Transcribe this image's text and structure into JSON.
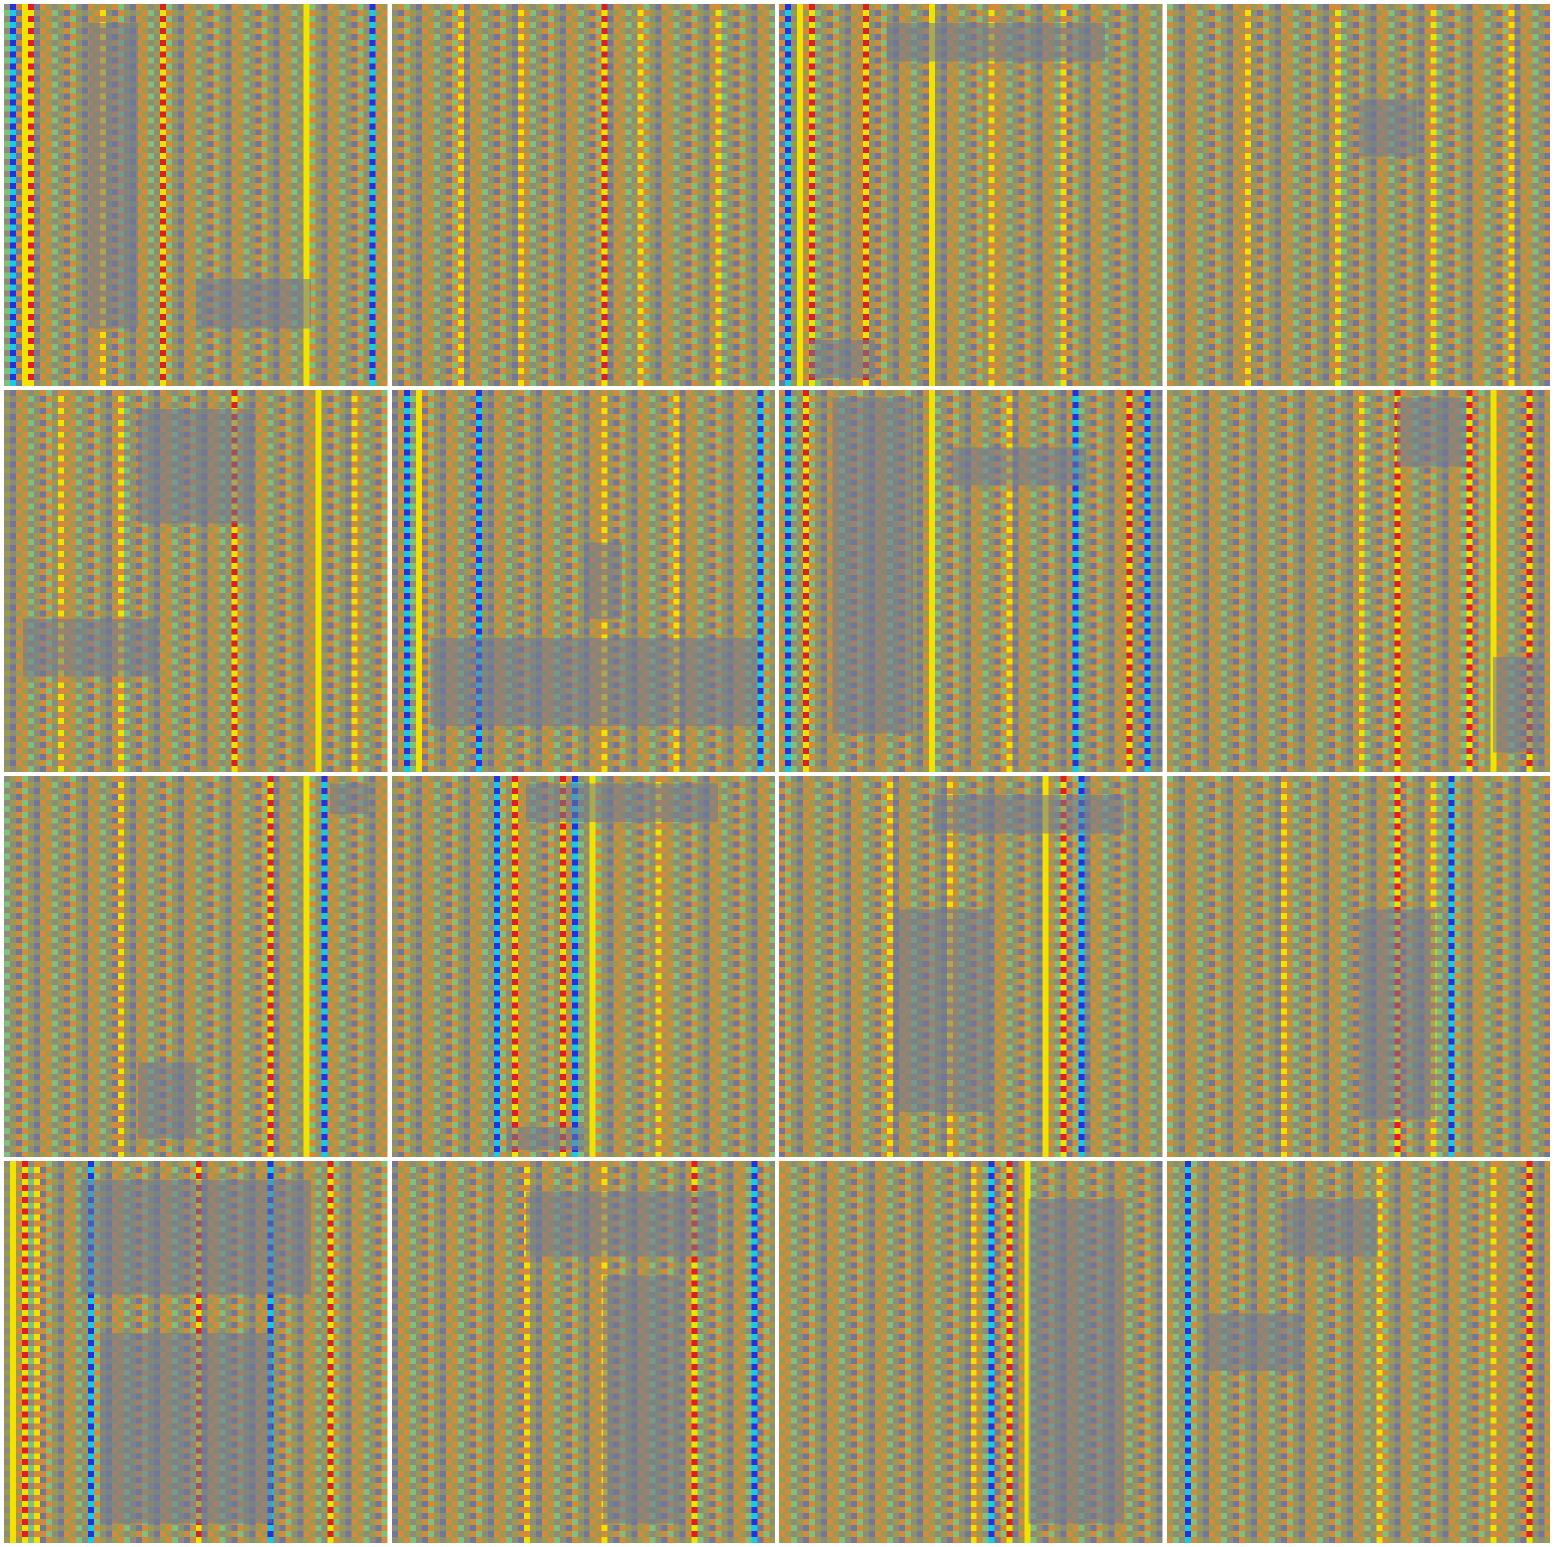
{
  "grid": {
    "rows": 4,
    "cols": 4,
    "separator_color": "#ffffff",
    "palette": {
      "gray": "#8c8c78",
      "olive": "#9a9a52",
      "orange": "#d48a3c",
      "yellow": "#f2e200",
      "red": "#e01e1e",
      "blue": "#1f33e0",
      "cyan": "#19c9e8",
      "green": "#7fc07a",
      "slate": "#707896"
    },
    "tiles": [
      {
        "name": "tile-r1-c1",
        "bands": [
          0.02,
          0.05,
          0.07,
          0.25,
          0.42,
          0.8,
          0.97
        ],
        "dark_regions": [
          [
            0.22,
            0.05,
            0.35,
            0.85
          ],
          [
            0.5,
            0.72,
            0.8,
            0.85
          ]
        ],
        "band_colors": [
          "blue",
          "yellow",
          "red",
          "orange",
          "red",
          "yellow",
          "blue"
        ]
      },
      {
        "name": "tile-r1-c2",
        "bands": [
          0.18,
          0.33,
          0.55,
          0.65,
          0.85
        ],
        "dark_regions": [],
        "band_colors": [
          "orange",
          "orange",
          "red",
          "orange",
          "orange"
        ]
      },
      {
        "name": "tile-r1-c3",
        "bands": [
          0.02,
          0.05,
          0.08,
          0.22,
          0.4,
          0.55,
          0.75
        ],
        "dark_regions": [
          [
            0.08,
            0.88,
            0.25,
            0.98
          ],
          [
            0.28,
            0.05,
            0.85,
            0.15
          ]
        ],
        "band_colors": [
          "blue",
          "yellow",
          "red",
          "red",
          "yellow",
          "orange",
          "orange"
        ]
      },
      {
        "name": "tile-r1-c4",
        "bands": [
          0.2,
          0.45,
          0.7,
          0.9
        ],
        "dark_regions": [
          [
            0.5,
            0.25,
            0.65,
            0.4
          ]
        ],
        "band_colors": [
          "orange",
          "orange",
          "orange",
          "orange"
        ]
      },
      {
        "name": "tile-r2-c1",
        "bands": [
          0.15,
          0.3,
          0.6,
          0.82,
          0.92
        ],
        "dark_regions": [
          [
            0.35,
            0.05,
            0.65,
            0.35
          ],
          [
            0.05,
            0.6,
            0.4,
            0.75
          ]
        ],
        "band_colors": [
          "orange",
          "orange",
          "red",
          "yellow",
          "orange"
        ]
      },
      {
        "name": "tile-r2-c2",
        "bands": [
          0.03,
          0.07,
          0.22,
          0.55,
          0.75,
          0.97
        ],
        "dark_regions": [
          [
            0.1,
            0.65,
            0.95,
            0.88
          ],
          [
            0.5,
            0.4,
            0.6,
            0.6
          ]
        ],
        "band_colors": [
          "blue",
          "yellow",
          "blue",
          "orange",
          "orange",
          "blue"
        ]
      },
      {
        "name": "tile-r2-c3",
        "bands": [
          0.02,
          0.06,
          0.4,
          0.6,
          0.78,
          0.92,
          0.97
        ],
        "dark_regions": [
          [
            0.14,
            0.02,
            0.35,
            0.9
          ],
          [
            0.45,
            0.15,
            0.8,
            0.25
          ]
        ],
        "band_colors": [
          "blue",
          "red",
          "yellow",
          "orange",
          "blue",
          "red",
          "blue"
        ]
      },
      {
        "name": "tile-r2-c4",
        "bands": [
          0.5,
          0.6,
          0.8,
          0.85,
          0.95
        ],
        "dark_regions": [
          [
            0.6,
            0.02,
            0.78,
            0.2
          ],
          [
            0.85,
            0.7,
            0.97,
            0.95
          ]
        ],
        "band_colors": [
          "orange",
          "red",
          "red",
          "yellow",
          "red"
        ]
      },
      {
        "name": "tile-r3-c1",
        "bands": [
          0.3,
          0.7,
          0.8,
          0.84
        ],
        "dark_regions": [
          [
            0.35,
            0.75,
            0.5,
            0.95
          ],
          [
            0.85,
            0.02,
            0.95,
            0.1
          ]
        ],
        "band_colors": [
          "orange",
          "red",
          "yellow",
          "blue"
        ]
      },
      {
        "name": "tile-r3-c2",
        "bands": [
          0.27,
          0.32,
          0.45,
          0.48,
          0.52,
          0.7
        ],
        "dark_regions": [
          [
            0.35,
            0.02,
            0.85,
            0.12
          ],
          [
            0.3,
            0.92,
            0.5,
            0.98
          ]
        ],
        "band_colors": [
          "blue",
          "red",
          "red",
          "blue",
          "yellow",
          "orange"
        ]
      },
      {
        "name": "tile-r3-c3",
        "bands": [
          0.28,
          0.45,
          0.7,
          0.75,
          0.8
        ],
        "dark_regions": [
          [
            0.3,
            0.35,
            0.55,
            0.88
          ],
          [
            0.4,
            0.05,
            0.9,
            0.15
          ]
        ],
        "band_colors": [
          "orange",
          "orange",
          "yellow",
          "red",
          "blue"
        ]
      },
      {
        "name": "tile-r3-c4",
        "bands": [
          0.3,
          0.6,
          0.7,
          0.75
        ],
        "dark_regions": [
          [
            0.5,
            0.35,
            0.7,
            0.9
          ]
        ],
        "band_colors": [
          "orange",
          "red",
          "orange",
          "blue"
        ]
      },
      {
        "name": "tile-r4-c1",
        "bands": [
          0.02,
          0.05,
          0.08,
          0.22,
          0.5,
          0.7,
          0.85
        ],
        "dark_regions": [
          [
            0.2,
            0.05,
            0.8,
            0.35
          ],
          [
            0.25,
            0.45,
            0.7,
            0.95
          ]
        ],
        "band_colors": [
          "yellow",
          "red",
          "orange",
          "blue",
          "red",
          "blue",
          "red"
        ]
      },
      {
        "name": "tile-r4-c2",
        "bands": [
          0.35,
          0.55,
          0.8,
          0.95
        ],
        "dark_regions": [
          [
            0.35,
            0.08,
            0.85,
            0.25
          ],
          [
            0.55,
            0.3,
            0.75,
            0.95
          ]
        ],
        "band_colors": [
          "orange",
          "orange",
          "red",
          "blue"
        ]
      },
      {
        "name": "tile-r4-c3",
        "bands": [
          0.5,
          0.55,
          0.6,
          0.65
        ],
        "dark_regions": [
          [
            0.65,
            0.1,
            0.9,
            0.95
          ]
        ],
        "band_colors": [
          "orange",
          "blue",
          "red",
          "yellow"
        ]
      },
      {
        "name": "tile-r4-c4",
        "bands": [
          0.05,
          0.55,
          0.85,
          0.95
        ],
        "dark_regions": [
          [
            0.3,
            0.1,
            0.55,
            0.25
          ],
          [
            0.1,
            0.4,
            0.35,
            0.55
          ]
        ],
        "band_colors": [
          "blue",
          "orange",
          "orange",
          "red"
        ]
      }
    ]
  }
}
